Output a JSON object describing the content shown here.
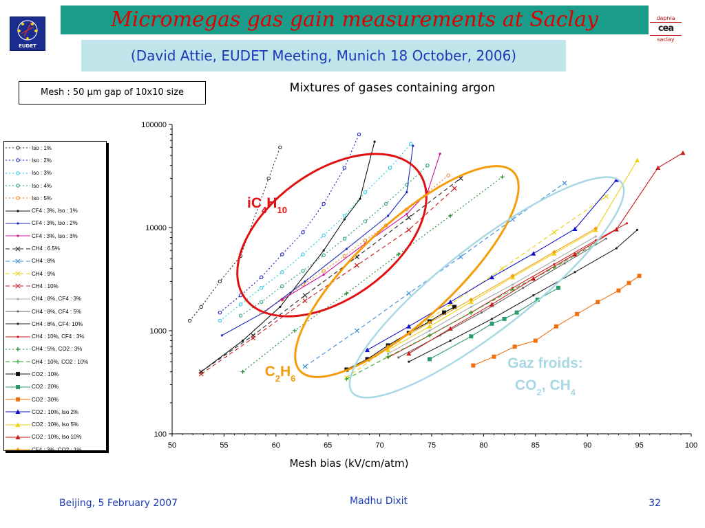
{
  "slide": {
    "title": "Micromegas gas gain measurements  at Saclay",
    "subtitle": "(David Attie, EUDET Meeting, Munich 18 October, 2006)",
    "logo_text": "EUDET",
    "brand": {
      "top": "dapnia",
      "mid": "cea",
      "bottom": "saclay"
    },
    "mesh_box": "Mesh : 50 μm gap of 10x10 size",
    "footer_left": "Beijing, 5 February 2007",
    "footer_center": "Madhu Dixit",
    "footer_right": "32"
  },
  "chart_data": {
    "type": "line",
    "title": "Mixtures of gases containing argon",
    "xlabel": "Mesh bias (kV/cm/atm)",
    "ylabel": "",
    "xlim": [
      50,
      100
    ],
    "ylim": [
      100,
      100000
    ],
    "yscale": "log",
    "xticks": [
      "50",
      "55",
      "60",
      "65",
      "70",
      "75",
      "80",
      "85",
      "90",
      "95",
      "100"
    ],
    "yticks": [
      "100",
      "1000",
      "10000",
      "100000"
    ],
    "legend_position": "left",
    "grid": false,
    "annotations": [
      {
        "text": "iC4H10",
        "color": "#e01010",
        "center": [
          63.5,
          10000
        ]
      },
      {
        "text": "C2H6",
        "color": "#f59c0a",
        "center": [
          75.5,
          4000
        ]
      },
      {
        "text": "Gaz froids:",
        "text2": "CO2, CH4",
        "color": "#a8d8e4",
        "center": [
          82,
          1100
        ]
      }
    ],
    "ellipses": [
      {
        "name": "ic4h10-ellipse",
        "color": "#e01010"
      },
      {
        "name": "c2h6-ellipse",
        "color": "#f59c0a"
      },
      {
        "name": "cold-gas-ellipse",
        "color": "#a8d8e4"
      }
    ],
    "series": [
      {
        "name": "Iso : 1%",
        "color": "#222222",
        "style": "dotted",
        "marker": "circle-open",
        "x": [
          51.7,
          52.8,
          54.6,
          56.6,
          59.3,
          60.4
        ],
        "y": [
          1250,
          1700,
          3000,
          5300,
          30000,
          60000
        ]
      },
      {
        "name": "Iso : 2%",
        "color": "#1010c8",
        "style": "dotted",
        "marker": "circle-open",
        "x": [
          54.6,
          56.6,
          58.6,
          60.6,
          62.6,
          64.6,
          66.6,
          68.0
        ],
        "y": [
          1500,
          2200,
          3300,
          5500,
          9000,
          17000,
          38000,
          80000
        ]
      },
      {
        "name": "Iso : 3%",
        "color": "#18c8e8",
        "style": "dotted",
        "marker": "circle-open",
        "x": [
          54.6,
          56.6,
          58.6,
          60.6,
          62.6,
          64.6,
          66.6,
          68.6,
          71.0,
          73.0
        ],
        "y": [
          1250,
          1800,
          2600,
          3700,
          5500,
          8400,
          13000,
          22000,
          38000,
          65000
        ]
      },
      {
        "name": "Iso : 4%",
        "color": "#1a9a6e",
        "style": "dotted",
        "marker": "circle-open",
        "x": [
          56.6,
          58.6,
          60.6,
          62.6,
          64.6,
          66.6,
          68.6,
          70.6,
          72.6,
          74.6
        ],
        "y": [
          1400,
          1900,
          2700,
          3800,
          5400,
          7800,
          11500,
          17000,
          26000,
          40000
        ]
      },
      {
        "name": "Iso : 5%",
        "color": "#f07a1a",
        "style": "dotted",
        "marker": "circle-open",
        "x": [
          58.6,
          60.6,
          62.6,
          64.6,
          66.6,
          68.6,
          70.6,
          72.6,
          74.6,
          76.6
        ],
        "y": [
          1500,
          2000,
          2800,
          3800,
          5300,
          7500,
          10500,
          15000,
          22000,
          32000
        ]
      },
      {
        "name": "CF4 : 3%, Iso : 1%",
        "color": "#111111",
        "style": "solid",
        "marker": "dot",
        "x": [
          52.8,
          56.8,
          60.4,
          64.6,
          66.6,
          68.1,
          69.2,
          69.5
        ],
        "y": [
          400,
          800,
          1700,
          6000,
          12000,
          19000,
          52000,
          68000
        ]
      },
      {
        "name": "CF4 : 3%, Iso : 2%",
        "color": "#1a2ab8",
        "style": "solid",
        "marker": "dot",
        "x": [
          54.8,
          58.8,
          62.8,
          66.8,
          70.8,
          72.6,
          73.2
        ],
        "y": [
          900,
          1500,
          3000,
          6200,
          13000,
          22000,
          62000
        ]
      },
      {
        "name": "CF4 : 3%, Iso : 3%",
        "color": "#d0109a",
        "style": "solid",
        "marker": "dot",
        "x": [
          60.6,
          64.6,
          68.6,
          72.6,
          74.6,
          75.8
        ],
        "y": [
          2000,
          3500,
          7000,
          13500,
          22000,
          52000
        ]
      },
      {
        "name": "CH4 : 6.5%",
        "color": "#222222",
        "style": "dashed",
        "marker": "x",
        "x": [
          52.8,
          57.8,
          62.8,
          67.8,
          72.8,
          77.8
        ],
        "y": [
          400,
          900,
          2200,
          5200,
          12500,
          30000
        ]
      },
      {
        "name": "CH4 : 8%",
        "color": "#3a8ad8",
        "style": "dashed",
        "marker": "x",
        "x": [
          62.8,
          67.8,
          72.8,
          77.8,
          82.8,
          87.8
        ],
        "y": [
          450,
          1000,
          2300,
          5200,
          12000,
          27000
        ]
      },
      {
        "name": "CH4 : 9%",
        "color": "#e8d00a",
        "style": "dashed",
        "marker": "x",
        "x": [
          66.8,
          71.8,
          76.8,
          81.8,
          86.8,
          91.8
        ],
        "y": [
          350,
          800,
          1800,
          4000,
          9000,
          20000
        ]
      },
      {
        "name": "CH4 : 10%",
        "color": "#c81a1a",
        "style": "dashed",
        "marker": "x",
        "x": [
          52.8,
          57.8,
          62.8,
          67.8,
          72.8,
          77.2
        ],
        "y": [
          380,
          850,
          1950,
          4300,
          9500,
          24000
        ]
      },
      {
        "name": "CH4 : 8%, CF4 : 3%",
        "color": "#aaaaaa",
        "style": "solid",
        "marker": "dot",
        "x": [
          70.8,
          74.8,
          78.8,
          82.8,
          86.8,
          90.8
        ],
        "y": [
          600,
          1000,
          1700,
          2800,
          4800,
          8200
        ]
      },
      {
        "name": "CH4 : 8%, CF4 : 5%",
        "color": "#666666",
        "style": "solid",
        "marker": "dot",
        "x": [
          71.8,
          75.8,
          79.8,
          83.8,
          87.8,
          91.8
        ],
        "y": [
          550,
          900,
          1500,
          2600,
          4500,
          7800
        ]
      },
      {
        "name": "CH4 : 8%, CF4: 10%",
        "color": "#222222",
        "style": "solid",
        "marker": "dot",
        "x": [
          72.8,
          76.8,
          80.8,
          84.8,
          88.8,
          92.8,
          94.8
        ],
        "y": [
          500,
          800,
          1300,
          2200,
          3700,
          6300,
          9500
        ]
      },
      {
        "name": "CH4 : 10%, CF4 : 3%",
        "color": "#c81a1a",
        "style": "solid",
        "marker": "dot",
        "x": [
          70.8,
          74.8,
          78.8,
          82.8,
          86.8,
          90.8,
          93.8
        ],
        "y": [
          550,
          900,
          1500,
          2600,
          4400,
          7500,
          11000
        ]
      },
      {
        "name": "CH4 : 5%, CO2 : 3%",
        "color": "#1a8a2a",
        "style": "dotted",
        "marker": "plus",
        "x": [
          56.8,
          61.8,
          66.8,
          71.8,
          76.8,
          81.8
        ],
        "y": [
          400,
          1000,
          2300,
          5500,
          13000,
          31000
        ]
      },
      {
        "name": "CH4 : 10%, CO2 : 10%",
        "color": "#2aa82a",
        "style": "dashed",
        "marker": "plus",
        "x": [
          66.8,
          70.8,
          74.8,
          78.8,
          82.8,
          86.8,
          90.8
        ],
        "y": [
          340,
          560,
          900,
          1500,
          2500,
          4100,
          7000
        ]
      },
      {
        "name": "CO2 : 10%",
        "color": "#111111",
        "style": "solid",
        "marker": "square",
        "x": [
          66.8,
          68.8,
          70.8,
          72.8,
          74.8,
          76.2,
          77.2
        ],
        "y": [
          420,
          530,
          720,
          950,
          1230,
          1500,
          1700
        ]
      },
      {
        "name": "CO2 : 20%",
        "color": "#2a9a6a",
        "style": "solid",
        "marker": "square",
        "x": [
          74.8,
          78.8,
          80.8,
          82.0,
          83.2,
          85.2,
          87.2
        ],
        "y": [
          530,
          880,
          1170,
          1300,
          1500,
          2000,
          2600
        ]
      },
      {
        "name": "CO2 : 30%",
        "color": "#f07010",
        "style": "solid",
        "marker": "square",
        "x": [
          79.0,
          81.0,
          83.0,
          85.0,
          87.0,
          89.0,
          91.0,
          93.0,
          94.0,
          95.0
        ],
        "y": [
          460,
          560,
          700,
          800,
          1100,
          1450,
          1900,
          2450,
          2900,
          3400
        ]
      },
      {
        "name": "CO2 : 10%, Iso 2%",
        "color": "#1010c8",
        "style": "solid",
        "marker": "triangle",
        "x": [
          68.8,
          72.8,
          76.8,
          80.8,
          84.8,
          88.8,
          92.8
        ],
        "y": [
          650,
          1100,
          1900,
          3300,
          5600,
          9700,
          29000
        ]
      },
      {
        "name": "CO2 : 10%, Iso 5%",
        "color": "#f0d010",
        "style": "solid",
        "marker": "triangle",
        "x": [
          70.8,
          74.8,
          78.8,
          82.8,
          86.8,
          90.8,
          94.8
        ],
        "y": [
          650,
          1100,
          1900,
          3300,
          5600,
          9500,
          45000
        ]
      },
      {
        "name": "CO2 : 10%, Iso 10%",
        "color": "#c81a1a",
        "style": "solid",
        "marker": "triangle",
        "x": [
          72.8,
          76.8,
          80.8,
          84.8,
          88.8,
          92.8,
          96.8,
          99.2
        ],
        "y": [
          600,
          1050,
          1800,
          3200,
          5500,
          9600,
          38000,
          53000
        ]
      },
      {
        "name": "CF4 : 3%, CO2 : 1%",
        "color": "#f0a010",
        "style": "solid",
        "marker": "diamond",
        "x": [
          70.8,
          74.8,
          78.8,
          82.8,
          86.8,
          90.8
        ],
        "y": [
          700,
          1200,
          2000,
          3400,
          5800,
          9800
        ]
      }
    ]
  }
}
